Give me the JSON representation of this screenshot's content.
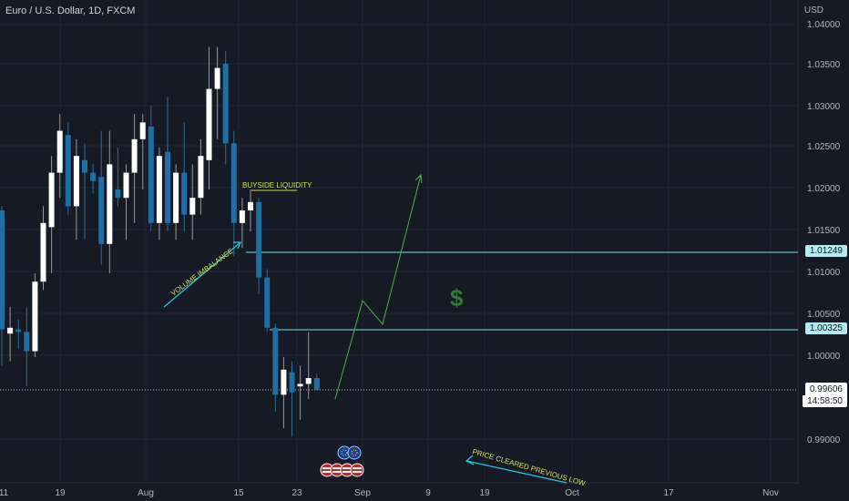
{
  "header": {
    "symbol_title": "Euro / U.S. Dollar, 1D, FXCM",
    "currency": "USD"
  },
  "price_axis": {
    "ticks": [
      "1.04000",
      "1.03500",
      "1.03000",
      "1.02500",
      "1.02000",
      "1.01500",
      "1.01000",
      "1.00500",
      "1.00000",
      "0.99000"
    ]
  },
  "time_axis": {
    "ticks": [
      "11",
      "19",
      "Aug",
      "15",
      "23",
      "Sep",
      "9",
      "19",
      "Oct",
      "17",
      "Nov"
    ]
  },
  "levels": [
    {
      "price_label": "1.01249"
    },
    {
      "price_label": "1.00325"
    }
  ],
  "last_price": {
    "value": "0.99606",
    "countdown": "14:58:50"
  },
  "annotations": {
    "buyside": "BUYSIDE LIQUIDITY",
    "volume": "VOLUME IMBALANCE",
    "cleared": "PRICE CLEARED PREVIOUS LOW",
    "dollar": "$"
  },
  "colors": {
    "bull": "#ffffff",
    "bear": "#1e6fa6",
    "level": "#80deea",
    "projection": "#4caf50",
    "background": "#161a25"
  },
  "chart_data": {
    "type": "candlestick",
    "ylim": [
      0.9875,
      1.0415
    ],
    "candles": [
      {
        "o": 1.0175,
        "h": 1.018,
        "l": 0.999,
        "c": 1.0033
      },
      {
        "o": 1.0028,
        "h": 1.006,
        "l": 0.9995,
        "c": 1.0035
      },
      {
        "o": 1.0033,
        "h": 1.0045,
        "l": 1.001,
        "c": 1.003
      },
      {
        "o": 1.003,
        "h": 1.006,
        "l": 0.9965,
        "c": 1.0007
      },
      {
        "o": 1.0007,
        "h": 1.01,
        "l": 1.0,
        "c": 1.009
      },
      {
        "o": 1.009,
        "h": 1.018,
        "l": 1.008,
        "c": 1.016
      },
      {
        "o": 1.0155,
        "h": 1.024,
        "l": 1.01,
        "c": 1.022
      },
      {
        "o": 1.022,
        "h": 1.029,
        "l": 1.019,
        "c": 1.027
      },
      {
        "o": 1.0265,
        "h": 1.028,
        "l": 1.017,
        "c": 1.018
      },
      {
        "o": 1.018,
        "h": 1.026,
        "l": 1.014,
        "c": 1.024
      },
      {
        "o": 1.0235,
        "h": 1.0255,
        "l": 1.014,
        "c": 1.022
      },
      {
        "o": 1.022,
        "h": 1.023,
        "l": 1.0195,
        "c": 1.021
      },
      {
        "o": 1.0215,
        "h": 1.027,
        "l": 1.011,
        "c": 1.0135
      },
      {
        "o": 1.0135,
        "h": 1.027,
        "l": 1.01,
        "c": 1.023
      },
      {
        "o": 1.02,
        "h": 1.025,
        "l": 1.018,
        "c": 1.019
      },
      {
        "o": 1.019,
        "h": 1.023,
        "l": 1.014,
        "c": 1.022
      },
      {
        "o": 1.022,
        "h": 1.029,
        "l": 1.016,
        "c": 1.026
      },
      {
        "o": 1.026,
        "h": 1.029,
        "l": 1.02,
        "c": 1.028
      },
      {
        "o": 1.0275,
        "h": 1.03,
        "l": 1.015,
        "c": 1.016
      },
      {
        "o": 1.016,
        "h": 1.025,
        "l": 1.014,
        "c": 1.024
      },
      {
        "o": 1.0245,
        "h": 1.031,
        "l": 1.015,
        "c": 1.016
      },
      {
        "o": 1.016,
        "h": 1.023,
        "l": 1.014,
        "c": 1.022
      },
      {
        "o": 1.022,
        "h": 1.028,
        "l": 1.015,
        "c": 1.017
      },
      {
        "o": 1.017,
        "h": 1.023,
        "l": 1.014,
        "c": 1.019
      },
      {
        "o": 1.019,
        "h": 1.026,
        "l": 1.017,
        "c": 1.024
      },
      {
        "o": 1.0235,
        "h": 1.037,
        "l": 1.02,
        "c": 1.032
      },
      {
        "o": 1.032,
        "h": 1.037,
        "l": 1.026,
        "c": 1.0345
      },
      {
        "o": 1.035,
        "h": 1.0365,
        "l": 1.023,
        "c": 1.0255
      },
      {
        "o": 1.0255,
        "h": 1.027,
        "l": 1.012,
        "c": 1.016
      },
      {
        "o": 1.016,
        "h": 1.019,
        "l": 1.013,
        "c": 1.0175
      },
      {
        "o": 1.0175,
        "h": 1.02,
        "l": 1.015,
        "c": 1.0185
      },
      {
        "o": 1.0185,
        "h": 1.019,
        "l": 1.0075,
        "c": 1.0095
      },
      {
        "o": 1.0095,
        "h": 1.0105,
        "l": 1.003,
        "c": 1.0035
      },
      {
        "o": 1.0035,
        "h": 1.004,
        "l": 0.9935,
        "c": 0.9955
      },
      {
        "o": 0.9955,
        "h": 1.0,
        "l": 0.9915,
        "c": 0.9985
      },
      {
        "o": 0.9982,
        "h": 0.9995,
        "l": 0.9905,
        "c": 0.9958
      },
      {
        "o": 0.9965,
        "h": 0.999,
        "l": 0.9925,
        "c": 0.9968
      },
      {
        "o": 0.9968,
        "h": 1.003,
        "l": 0.995,
        "c": 0.9975
      },
      {
        "o": 0.9975,
        "h": 0.998,
        "l": 0.996,
        "c": 0.9961
      }
    ]
  }
}
